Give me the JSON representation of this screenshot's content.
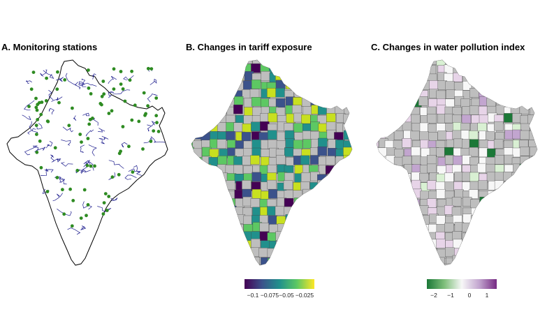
{
  "panels": [
    {
      "id": "a",
      "title": "A. Monitoring stations",
      "layer": "rivers-and-stations",
      "colors": {
        "outline": "#000000",
        "rivers": "#1a1a8c",
        "stations": "#2e8b22",
        "fill": "#ffffff"
      }
    },
    {
      "id": "b",
      "title": "B. Changes in tariff exposure",
      "layer": "district-choropleth",
      "legend": {
        "type": "continuous",
        "palette": "viridis",
        "colors": [
          "#440154",
          "#3b528b",
          "#21908c",
          "#5dc863",
          "#fde725"
        ],
        "ticks": [
          "−0.1",
          "−0.075",
          "−0.05",
          "−0.025"
        ],
        "no_data_color": "#bebebe"
      }
    },
    {
      "id": "c",
      "title": "C. Changes in water pollution index",
      "layer": "district-choropleth",
      "legend": {
        "type": "continuous",
        "palette": "green-white-purple",
        "colors": [
          "#1b7837",
          "#7fbf7b",
          "#f7f7f7",
          "#c2a5cf",
          "#762a83"
        ],
        "ticks": [
          "−2",
          "−1",
          "0",
          "1"
        ],
        "no_data_color": "#bebebe"
      }
    }
  ]
}
